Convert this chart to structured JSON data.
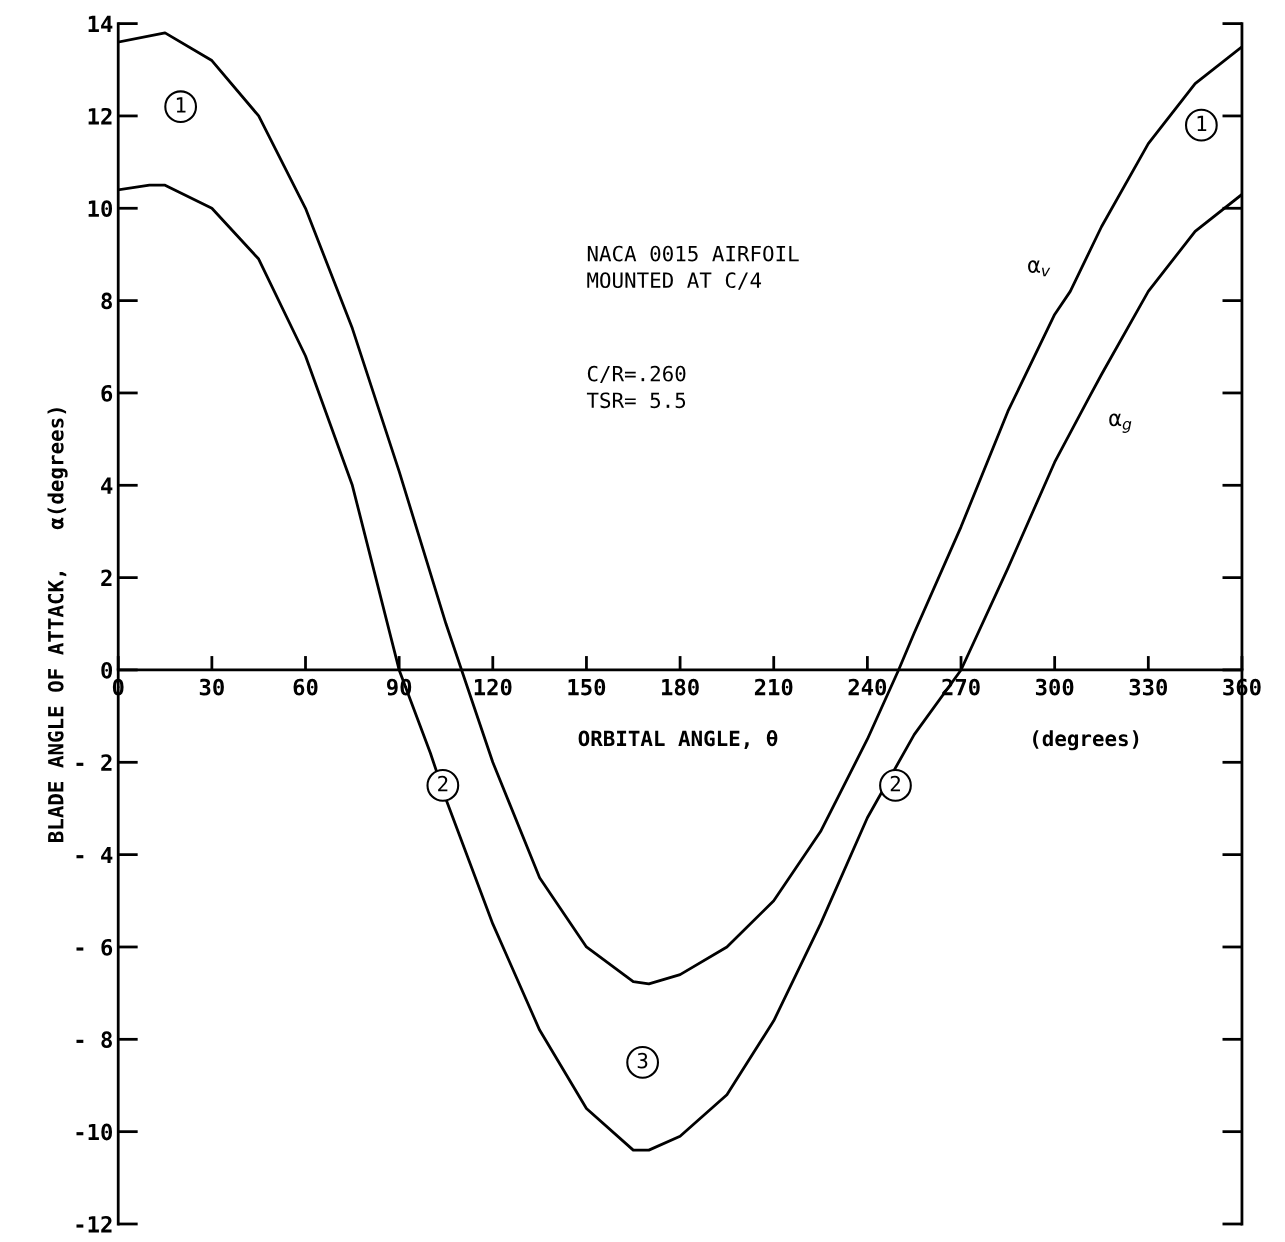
{
  "chart_data": {
    "type": "line",
    "xlabel": "ORBITAL ANGLE, θ                    (degrees)",
    "ylabel": "BLADE ANGLE OF ATTACK,   α(degrees)",
    "series": [
      {
        "name": "α$_{v}$",
        "color": "#000000",
        "x": [
          0,
          15,
          30,
          45,
          60,
          75,
          90,
          105,
          110,
          120,
          135,
          150,
          165,
          170,
          180,
          195,
          210,
          225,
          240,
          250,
          255,
          270,
          285,
          300,
          305,
          315,
          330,
          345,
          360
        ],
        "values": [
          13.6,
          13.8,
          13.2,
          12.0,
          10.0,
          7.4,
          4.3,
          1.0,
          0,
          -2.0,
          -4.5,
          -6.0,
          -6.75,
          -6.8,
          -6.6,
          -6.0,
          -5.0,
          -3.5,
          -1.5,
          0,
          0.8,
          3.1,
          5.6,
          7.7,
          8.2,
          9.6,
          11.4,
          12.7,
          13.5
        ]
      },
      {
        "name": "α$_{g}$",
        "color": "#000000",
        "x": [
          0,
          10,
          15,
          30,
          45,
          60,
          75,
          90,
          100,
          105,
          120,
          135,
          150,
          165,
          170,
          180,
          195,
          210,
          225,
          240,
          255,
          270,
          285,
          300,
          311,
          315,
          330,
          345,
          360
        ],
        "values": [
          10.4,
          10.5,
          10.5,
          10.0,
          8.9,
          6.8,
          4.0,
          0,
          -1.8,
          -2.8,
          -5.5,
          -7.8,
          -9.5,
          -10.4,
          -10.4,
          -10.1,
          -9.2,
          -7.6,
          -5.5,
          -3.2,
          -1.4,
          0,
          2.2,
          4.5,
          5.9,
          6.4,
          8.2,
          9.5,
          10.3
        ]
      }
    ],
    "annotations": [
      "NACA 0015 AIRFOIL\nMOUNTED AT C/4",
      "C/R=.260\nTSR= 5.5",
      {
        "text": "1",
        "x": 20,
        "y": 12.2
      },
      {
        "text": "2",
        "x": 104,
        "y": -2.5
      },
      {
        "text": "3",
        "x": 168,
        "y": -8.5
      },
      {
        "text": "2",
        "x": 249,
        "y": -2.5
      },
      {
        "text": "1",
        "x": 347,
        "y": 11.8
      }
    ],
    "xlim": [
      0,
      360
    ],
    "ylim": [
      -12,
      14
    ],
    "xticks": [
      0,
      30,
      60,
      90,
      120,
      150,
      180,
      210,
      240,
      270,
      300,
      330,
      360
    ],
    "yticks": [
      14,
      12,
      10,
      8,
      6,
      4,
      2,
      0,
      {
        "value": -2,
        "label": "- 2"
      },
      {
        "value": -4,
        "label": "- 4"
      },
      {
        "value": -6,
        "label": "- 6"
      },
      {
        "value": -8,
        "label": "- 8"
      },
      {
        "value": -10,
        "label": "-10"
      },
      {
        "value": -12,
        "label": "-12"
      }
    ],
    "grid": false,
    "legend": false
  }
}
